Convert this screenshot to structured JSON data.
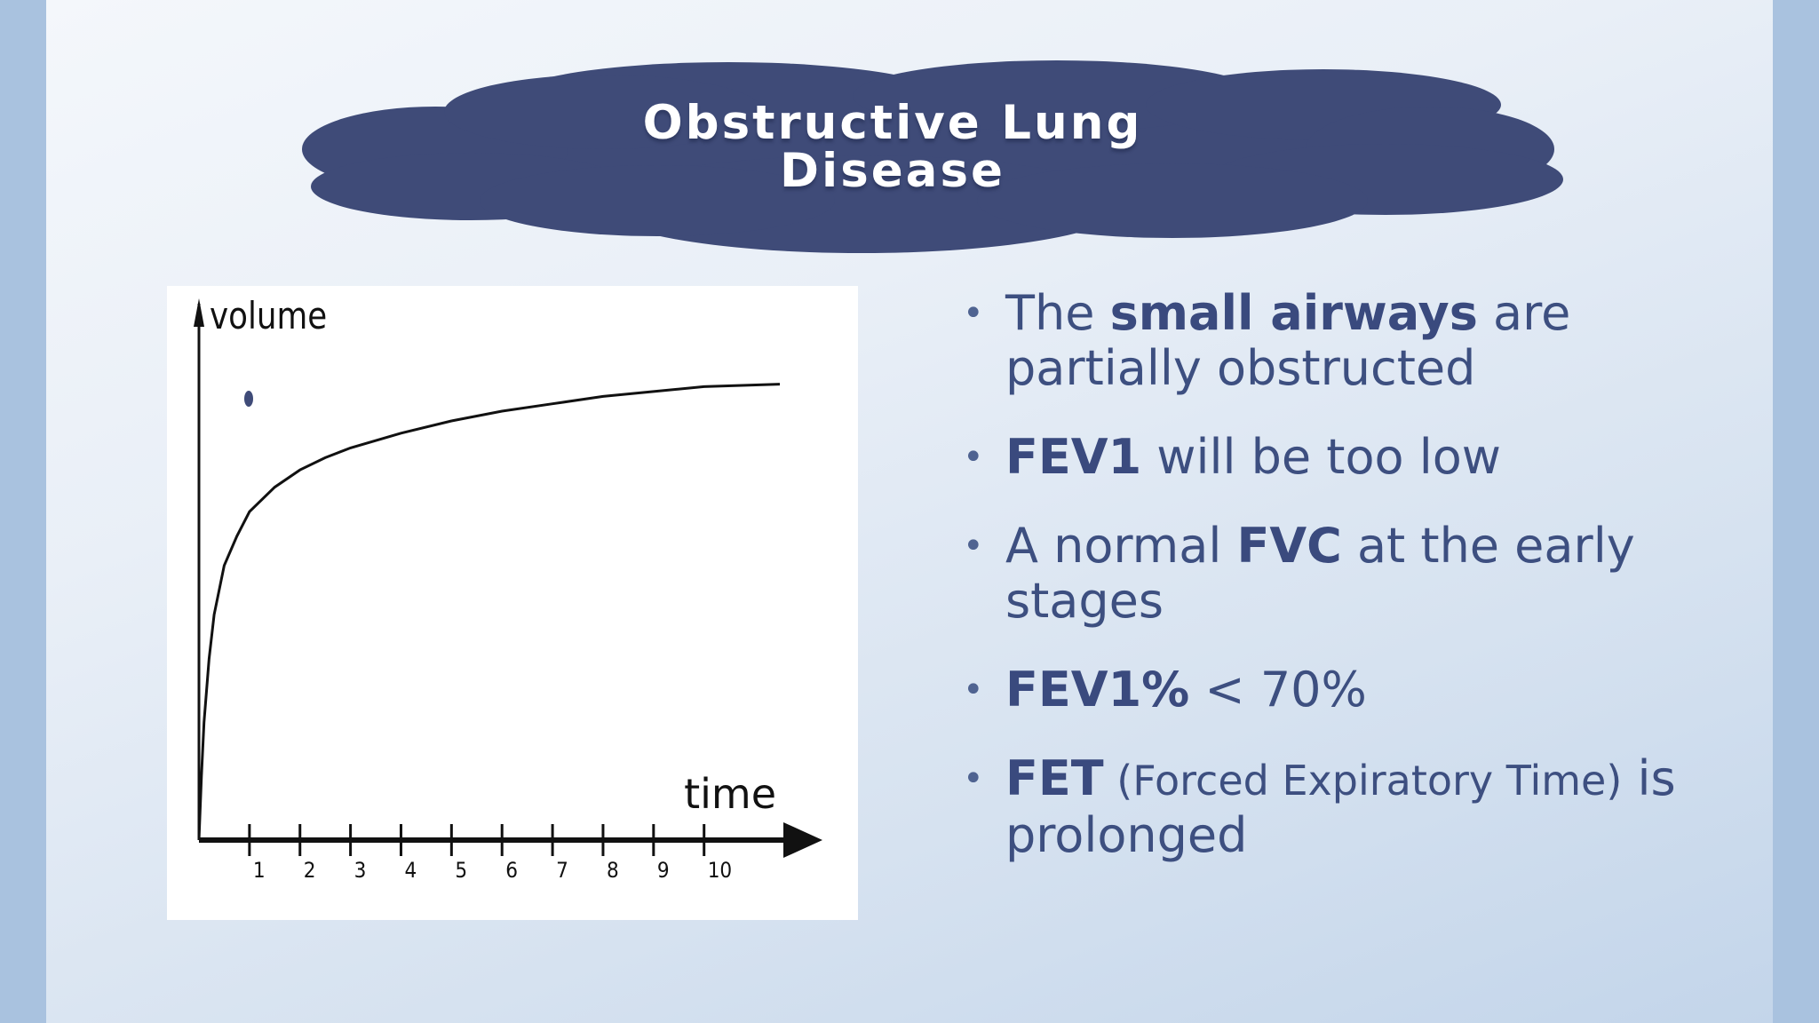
{
  "title": {
    "line1": "Obstructive Lung",
    "line2": "Disease"
  },
  "colors": {
    "cloud": "#3f4b78",
    "text": "#3d4f80",
    "curve": "#111111"
  },
  "chart_data": {
    "type": "line",
    "xlabel": "time",
    "ylabel": "volume",
    "x_ticks": [
      "1",
      "2",
      "3",
      "4",
      "5",
      "6",
      "7",
      "8",
      "9",
      "10"
    ],
    "xlim": [
      0,
      11.5
    ],
    "ylim": [
      0,
      1.0
    ],
    "series": [
      {
        "x": [
          0,
          0.05,
          0.1,
          0.2,
          0.3,
          0.5,
          0.75,
          1,
          1.5,
          2,
          2.5,
          3,
          4,
          5,
          6,
          7,
          8,
          9,
          10,
          11.5
        ],
        "y": [
          0,
          0.13,
          0.24,
          0.37,
          0.46,
          0.56,
          0.62,
          0.67,
          0.72,
          0.755,
          0.78,
          0.8,
          0.83,
          0.855,
          0.875,
          0.89,
          0.905,
          0.915,
          0.925,
          0.93
        ]
      }
    ],
    "grid": false
  },
  "bullets": [
    {
      "parts": [
        {
          "t": "The ",
          "b": false
        },
        {
          "t": "small airways",
          "b": true
        },
        {
          "t": " are partially obstructed",
          "b": false
        }
      ]
    },
    {
      "parts": [
        {
          "t": "FEV1",
          "b": true
        },
        {
          "t": " will be too low",
          "b": false
        }
      ]
    },
    {
      "parts": [
        {
          "t": "A normal ",
          "b": false
        },
        {
          "t": "FVC",
          "b": true
        },
        {
          "t": " at the early stages",
          "b": false
        }
      ]
    },
    {
      "parts": [
        {
          "t": "FEV1%",
          "b": true
        },
        {
          "t": " < 70%",
          "b": false
        }
      ]
    },
    {
      "parts": [
        {
          "t": "FET",
          "b": true
        },
        {
          "t": " (Forced Expiratory Time)",
          "b": false,
          "small": true
        },
        {
          "t": " is prolonged",
          "b": false
        }
      ]
    }
  ],
  "bullet_symbol": "•"
}
